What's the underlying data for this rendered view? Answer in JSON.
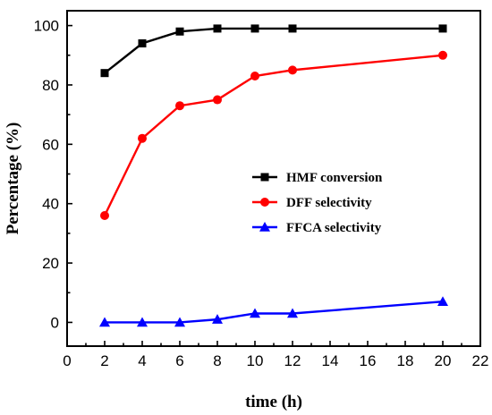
{
  "chart_data": {
    "type": "line",
    "xlabel": "time (h)",
    "ylabel": "Percentage (%)",
    "xlim": [
      0,
      22
    ],
    "ylim": [
      -8,
      105
    ],
    "xticks": [
      0,
      2,
      4,
      6,
      8,
      10,
      12,
      14,
      16,
      18,
      20,
      22
    ],
    "yticks": [
      0,
      20,
      40,
      60,
      80,
      100
    ],
    "grid": false,
    "legend_position": "right-center",
    "series": [
      {
        "name": "HMF conversion",
        "color": "#000000",
        "marker": "square",
        "x": [
          2,
          4,
          6,
          8,
          10,
          12,
          20
        ],
        "y": [
          84,
          94,
          98,
          99,
          99,
          99,
          99
        ]
      },
      {
        "name": "DFF selectivity",
        "color": "#ff0000",
        "marker": "circle",
        "x": [
          2,
          4,
          6,
          8,
          10,
          12,
          20
        ],
        "y": [
          36,
          62,
          73,
          75,
          83,
          85,
          90
        ]
      },
      {
        "name": "FFCA selectivity",
        "color": "#0000ff",
        "marker": "triangle",
        "x": [
          2,
          4,
          6,
          8,
          10,
          12,
          20
        ],
        "y": [
          0,
          0,
          0,
          1,
          3,
          3,
          7
        ]
      }
    ]
  }
}
